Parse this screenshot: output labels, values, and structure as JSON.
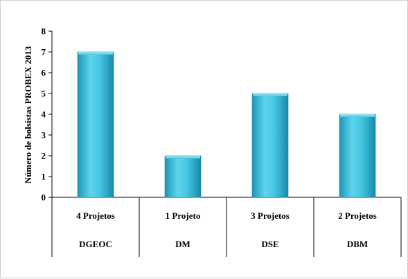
{
  "chart_data": {
    "type": "bar",
    "ylabel": "Número  de bolsistas PROBEX 2013",
    "ylim": [
      0,
      8
    ],
    "yticks": [
      0,
      1,
      2,
      3,
      4,
      5,
      6,
      7,
      8
    ],
    "grid": false,
    "categories": [
      "DGEOC",
      "DM",
      "DSE",
      "DBM"
    ],
    "subcategories": [
      "4 Projetos",
      "1 Projeto",
      "3 Projetos",
      "2 Projetos"
    ],
    "values": [
      7,
      2,
      5,
      4
    ],
    "bar_color": "#3bbfdc"
  }
}
